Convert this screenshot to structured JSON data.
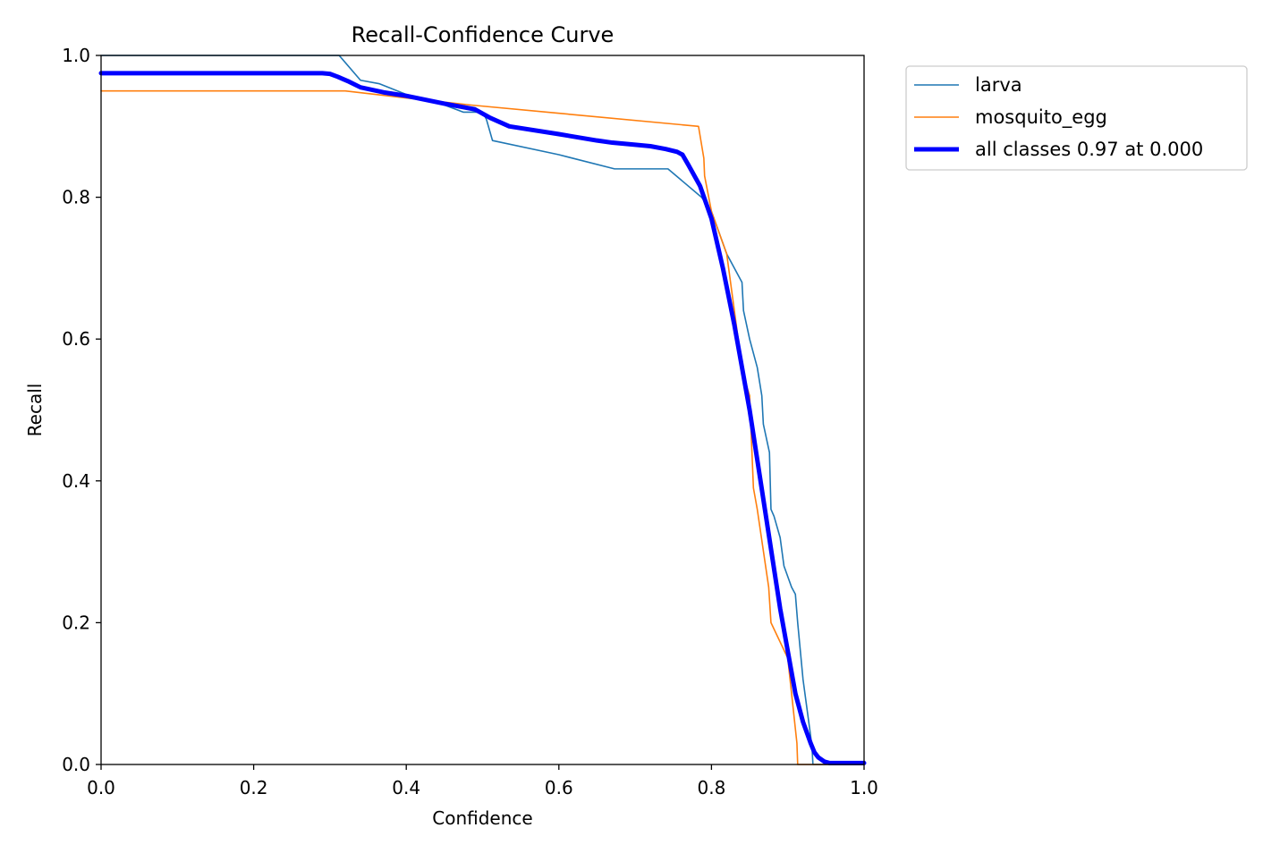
{
  "chart_data": {
    "type": "line",
    "title": "Recall-Confidence Curve",
    "xlabel": "Confidence",
    "ylabel": "Recall",
    "xlim": [
      0,
      1
    ],
    "ylim": [
      0,
      1
    ],
    "xticks": [
      "0.0",
      "0.2",
      "0.4",
      "0.6",
      "0.8",
      "1.0"
    ],
    "yticks": [
      "0.0",
      "0.2",
      "0.4",
      "0.6",
      "0.8",
      "1.0"
    ],
    "grid": false,
    "legend_placement": "outside-upper-right",
    "series": [
      {
        "name": "larva",
        "color": "#1f77b4",
        "x": [
          0.0,
          0.312,
          0.34,
          0.365,
          0.4,
          0.45,
          0.475,
          0.5,
          0.505,
          0.513,
          0.6,
          0.673,
          0.743,
          0.787,
          0.8,
          0.82,
          0.84,
          0.842,
          0.85,
          0.86,
          0.866,
          0.868,
          0.876,
          0.878,
          0.882,
          0.89,
          0.895,
          0.905,
          0.91,
          0.913,
          0.92,
          0.93,
          0.932,
          0.933,
          1.0
        ],
        "y": [
          1.0,
          1.0,
          0.965,
          0.96,
          0.945,
          0.93,
          0.92,
          0.92,
          0.91,
          0.88,
          0.86,
          0.84,
          0.84,
          0.8,
          0.78,
          0.72,
          0.68,
          0.64,
          0.6,
          0.56,
          0.52,
          0.48,
          0.44,
          0.36,
          0.35,
          0.32,
          0.28,
          0.25,
          0.24,
          0.2,
          0.12,
          0.04,
          0.02,
          0.0,
          0.0
        ]
      },
      {
        "name": "mosquito_egg",
        "color": "#ff7f0e",
        "x": [
          0.0,
          0.32,
          0.4,
          0.485,
          0.783,
          0.79,
          0.791,
          0.8,
          0.82,
          0.84,
          0.843,
          0.85,
          0.855,
          0.86,
          0.875,
          0.878,
          0.9,
          0.91,
          0.912,
          0.913,
          1.0
        ],
        "y": [
          0.95,
          0.95,
          0.94,
          0.93,
          0.9,
          0.855,
          0.83,
          0.78,
          0.72,
          0.56,
          0.545,
          0.52,
          0.39,
          0.36,
          0.25,
          0.2,
          0.15,
          0.05,
          0.03,
          0.0,
          0.0
        ]
      },
      {
        "name": "all classes 0.97 at 0.000",
        "color": "#0000ff",
        "x": [
          0.0,
          0.29,
          0.3,
          0.31,
          0.325,
          0.34,
          0.37,
          0.4,
          0.45,
          0.49,
          0.51,
          0.535,
          0.6,
          0.65,
          0.67,
          0.7,
          0.72,
          0.74,
          0.755,
          0.762,
          0.77,
          0.785,
          0.8,
          0.815,
          0.83,
          0.85,
          0.87,
          0.89,
          0.91,
          0.92,
          0.93,
          0.935,
          0.94,
          0.948,
          0.955,
          0.965,
          1.0
        ],
        "y": [
          0.975,
          0.975,
          0.974,
          0.97,
          0.963,
          0.955,
          0.948,
          0.943,
          0.932,
          0.924,
          0.912,
          0.9,
          0.889,
          0.88,
          0.877,
          0.874,
          0.872,
          0.868,
          0.864,
          0.86,
          0.845,
          0.816,
          0.77,
          0.7,
          0.62,
          0.5,
          0.36,
          0.22,
          0.1,
          0.06,
          0.03,
          0.017,
          0.01,
          0.004,
          0.002,
          0.002,
          0.002
        ]
      }
    ]
  }
}
